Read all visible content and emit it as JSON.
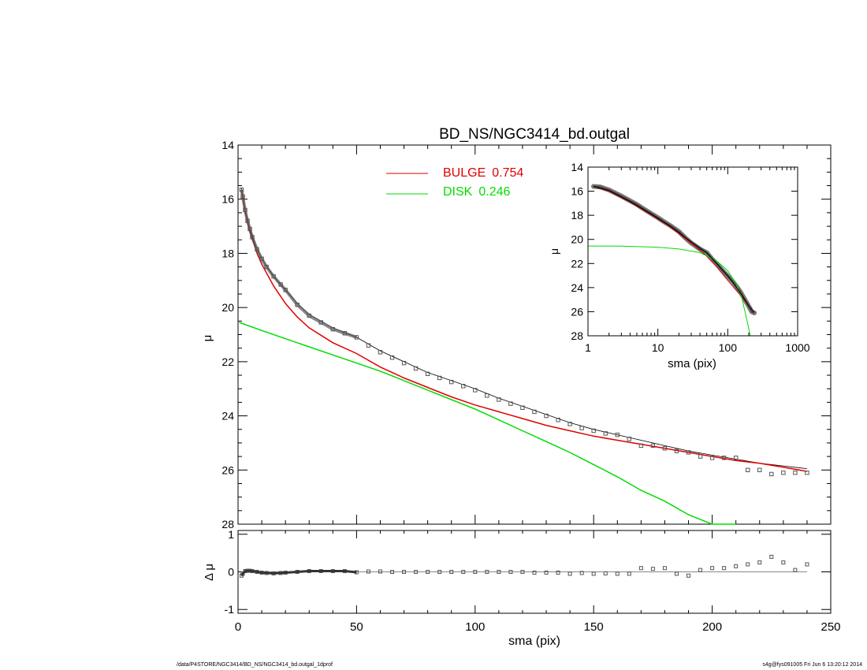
{
  "title": "BD_NS/NGC3414_bd.outgal",
  "footer": {
    "path": "/data/P4STORE/NGC3414/BD_NS/NGC3414_bd.outgal_1dprof",
    "stamp": "s4g@fys091005  Fri Jun  6 13:20:12 2014"
  },
  "colors": {
    "data": "#555555",
    "total": "#000000",
    "bulge": "#e00000",
    "disk": "#00dd00"
  },
  "chart_data": [
    {
      "type": "line",
      "name": "main-profile",
      "title": "BD_NS/NGC3414_bd.outgal",
      "xlabel": "",
      "ylabel": "μ",
      "xlim": [
        0,
        250
      ],
      "ylim": [
        28,
        14
      ],
      "yticks": [
        "14",
        "16",
        "18",
        "20",
        "22",
        "24",
        "26",
        "28"
      ],
      "legend": {
        "placement": "top-center",
        "entries": [
          {
            "label": "BULGE",
            "value": "0.754",
            "color": "#e00000"
          },
          {
            "label": "DISK",
            "value": "0.246",
            "color": "#00dd00"
          }
        ]
      },
      "series": [
        {
          "name": "data",
          "style": "squares",
          "x": [
            1.5,
            2,
            3,
            4,
            5,
            6,
            8,
            10,
            12,
            15,
            18,
            20,
            25,
            30,
            35,
            40,
            45,
            50,
            55,
            60,
            65,
            70,
            75,
            80,
            85,
            90,
            95,
            100,
            105,
            110,
            115,
            120,
            125,
            130,
            135,
            140,
            145,
            150,
            155,
            160,
            165,
            170,
            175,
            180,
            185,
            190,
            195,
            200,
            205,
            210,
            215,
            220,
            225,
            230,
            235,
            240
          ],
          "y": [
            15.65,
            15.9,
            16.4,
            16.8,
            17.1,
            17.4,
            17.85,
            18.2,
            18.5,
            18.85,
            19.15,
            19.35,
            19.9,
            20.3,
            20.55,
            20.8,
            20.95,
            21.1,
            21.4,
            21.65,
            21.85,
            22.05,
            22.25,
            22.45,
            22.6,
            22.75,
            22.9,
            23.05,
            23.25,
            23.4,
            23.55,
            23.7,
            23.85,
            24.0,
            24.15,
            24.3,
            24.45,
            24.55,
            24.65,
            24.7,
            24.85,
            25.1,
            25.1,
            25.2,
            25.3,
            25.35,
            25.5,
            25.55,
            25.55,
            25.55,
            26.0,
            26.0,
            26.15,
            26.1,
            26.1,
            26.1
          ]
        },
        {
          "name": "total",
          "style": "line",
          "x": [
            1.5,
            3,
            5,
            8,
            10,
            15,
            20,
            25,
            30,
            40,
            50,
            60,
            70,
            80,
            90,
            100,
            110,
            120,
            130,
            140,
            150,
            160,
            170,
            180,
            190,
            200,
            210,
            220,
            230,
            240
          ],
          "y": [
            15.6,
            16.4,
            17.1,
            17.85,
            18.2,
            18.85,
            19.35,
            19.85,
            20.25,
            20.75,
            21.1,
            21.6,
            22.0,
            22.4,
            22.7,
            23.0,
            23.35,
            23.65,
            23.95,
            24.25,
            24.5,
            24.7,
            24.9,
            25.1,
            25.3,
            25.45,
            25.6,
            25.75,
            25.85,
            25.95
          ]
        },
        {
          "name": "BULGE",
          "style": "line",
          "x": [
            1.5,
            3,
            5,
            8,
            10,
            15,
            20,
            25,
            30,
            40,
            50,
            60,
            70,
            80,
            90,
            100,
            110,
            120,
            130,
            140,
            150,
            160,
            170,
            180,
            190,
            200,
            210,
            220,
            230,
            240
          ],
          "y": [
            15.65,
            16.45,
            17.2,
            18.0,
            18.4,
            19.2,
            19.85,
            20.35,
            20.75,
            21.3,
            21.7,
            22.2,
            22.6,
            22.95,
            23.3,
            23.6,
            23.85,
            24.1,
            24.35,
            24.55,
            24.75,
            24.9,
            25.05,
            25.2,
            25.35,
            25.5,
            25.65,
            25.75,
            25.9,
            26.05
          ]
        },
        {
          "name": "DISK",
          "style": "line",
          "x": [
            0.5,
            10,
            20,
            30,
            40,
            50,
            60,
            70,
            80,
            90,
            100,
            110,
            120,
            130,
            140,
            150,
            160,
            170,
            180,
            190,
            200,
            205,
            210
          ],
          "y": [
            20.55,
            20.85,
            21.15,
            21.45,
            21.75,
            22.05,
            22.35,
            22.7,
            23.05,
            23.4,
            23.75,
            24.15,
            24.55,
            24.95,
            25.35,
            25.8,
            26.25,
            26.75,
            27.15,
            27.65,
            28.0,
            28.0,
            28.0
          ]
        }
      ]
    },
    {
      "type": "scatter",
      "name": "residuals",
      "xlabel": "sma (pix)",
      "ylabel": "Δ μ",
      "xlim": [
        0,
        250
      ],
      "ylim": [
        -1.1,
        1.1
      ],
      "xticks": [
        "0",
        "50",
        "100",
        "150",
        "200",
        "250"
      ],
      "yticks": [
        "1",
        "0",
        "-1"
      ],
      "series": [
        {
          "name": "residual",
          "x": [
            1.5,
            2,
            3,
            4,
            5,
            6,
            8,
            10,
            12,
            15,
            18,
            20,
            25,
            30,
            35,
            40,
            45,
            50,
            55,
            60,
            65,
            70,
            75,
            80,
            85,
            90,
            95,
            100,
            105,
            110,
            115,
            120,
            125,
            130,
            135,
            140,
            145,
            150,
            155,
            160,
            165,
            170,
            175,
            180,
            185,
            190,
            195,
            200,
            205,
            210,
            215,
            220,
            225,
            230,
            235,
            240
          ],
          "y": [
            -0.1,
            -0.05,
            0.02,
            0.03,
            0.03,
            0.02,
            0.0,
            -0.02,
            -0.03,
            -0.04,
            -0.03,
            -0.02,
            0.0,
            0.02,
            0.02,
            0.02,
            0.02,
            -0.01,
            0.01,
            0.01,
            0.0,
            0.0,
            0.0,
            0.0,
            0.0,
            0.0,
            0.0,
            0.0,
            0.0,
            0.0,
            0.0,
            0.0,
            -0.02,
            -0.02,
            -0.02,
            -0.05,
            -0.03,
            -0.05,
            -0.04,
            -0.05,
            -0.05,
            0.1,
            0.08,
            0.1,
            -0.05,
            -0.1,
            0.05,
            0.1,
            0.1,
            0.15,
            0.2,
            0.25,
            0.4,
            0.25,
            0.05,
            0.2
          ]
        }
      ]
    },
    {
      "type": "line",
      "name": "inset-log-profile",
      "xlabel": "sma (pix)",
      "ylabel": "μ",
      "xscale": "log",
      "xlim": [
        1,
        1000
      ],
      "ylim": [
        28,
        14
      ],
      "xticks": [
        "1",
        "10",
        "100",
        "1000"
      ],
      "yticks": [
        "14",
        "16",
        "18",
        "20",
        "22",
        "24",
        "26",
        "28"
      ],
      "series": [
        {
          "name": "data",
          "x": [
            1.2,
            1.5,
            2,
            3,
            4,
            5,
            6,
            8,
            10,
            12,
            15,
            20,
            25,
            30,
            40,
            50,
            60,
            70,
            80,
            100,
            120,
            150,
            180,
            200,
            220,
            240
          ],
          "y": [
            15.6,
            15.65,
            15.9,
            16.4,
            16.8,
            17.1,
            17.4,
            17.85,
            18.2,
            18.5,
            18.85,
            19.35,
            19.9,
            20.3,
            20.8,
            21.1,
            21.65,
            22.05,
            22.45,
            23.05,
            23.55,
            24.3,
            25.1,
            25.55,
            26.0,
            26.1
          ]
        },
        {
          "name": "BULGE",
          "x": [
            1.2,
            2,
            4,
            8,
            15,
            30,
            50,
            70,
            100,
            150,
            200,
            240
          ],
          "y": [
            15.6,
            16.0,
            16.9,
            17.95,
            18.95,
            20.3,
            21.4,
            22.3,
            23.4,
            24.6,
            25.5,
            26.1
          ]
        },
        {
          "name": "DISK",
          "x": [
            1,
            3,
            10,
            20,
            40,
            70,
            100,
            130,
            160,
            190,
            210
          ],
          "y": [
            20.55,
            20.56,
            20.65,
            20.8,
            21.1,
            21.8,
            22.6,
            23.6,
            24.9,
            26.8,
            28.0
          ]
        },
        {
          "name": "total",
          "x": [
            1.2,
            2,
            4,
            8,
            15,
            30,
            50,
            70,
            100,
            150,
            200,
            240
          ],
          "y": [
            15.6,
            15.95,
            16.85,
            17.9,
            18.9,
            20.2,
            21.1,
            22.0,
            23.0,
            24.4,
            25.5,
            26.05
          ]
        }
      ]
    }
  ]
}
